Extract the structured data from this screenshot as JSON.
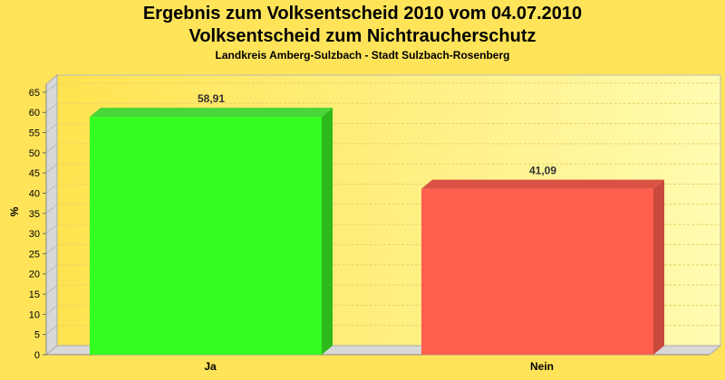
{
  "chart_data": {
    "type": "bar",
    "title": "Ergebnis zum Volksentscheid 2010 vom 04.07.2010",
    "subtitle": "Volksentscheid zum Nichtraucherschutz",
    "subsubtitle": "Landkreis Amberg-Sulzbach - Stadt Sulzbach-Rosenberg",
    "categories": [
      "Ja",
      "Nein"
    ],
    "values": [
      58.91,
      41.09
    ],
    "value_labels": [
      "58,91",
      "41,09"
    ],
    "ylabel": "%",
    "xlabel": "",
    "ylim": [
      0,
      67
    ],
    "yticks": [
      0,
      5,
      10,
      15,
      20,
      25,
      30,
      35,
      40,
      45,
      50,
      55,
      60,
      65
    ],
    "grid": true,
    "legend": "none",
    "colors": [
      "#33FF22",
      "#FF5F4F"
    ],
    "side_colors": [
      "#2DB81C",
      "#C9493D"
    ],
    "top_colors": [
      "#48D638",
      "#D95244"
    ]
  }
}
